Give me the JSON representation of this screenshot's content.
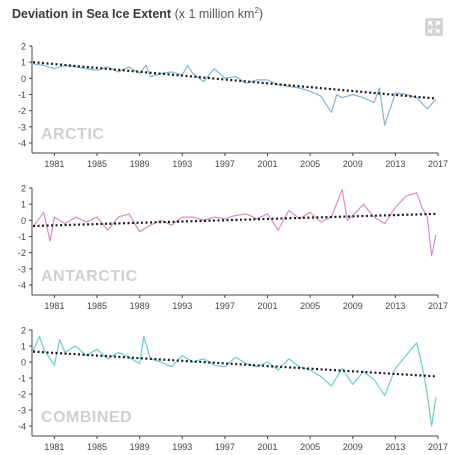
{
  "header": {
    "title": "Deviation in Sea Ice Extent",
    "unit_prefix": "(x 1 million km",
    "unit_sup": "2",
    "unit_suffix": ")",
    "expand_icon": "expand-arrows-icon"
  },
  "colors": {
    "arctic": "#7fb6d6",
    "antarctic": "#d68cca",
    "combined": "#6ccccf",
    "trend": "#1a1a1a",
    "panel_label": "#cfcfcf",
    "axis": "#444444"
  },
  "chart_data": [
    {
      "type": "line",
      "label": "ARCTIC",
      "color": "#7fb6d6",
      "xlim": [
        1978.9,
        2017.0
      ],
      "ylim": [
        -4,
        2
      ],
      "yticks": [
        2,
        1,
        0,
        -1,
        -2,
        -3,
        -4
      ],
      "xticks": [
        "1981",
        "1985",
        "1989",
        "1993",
        "1997",
        "2001",
        "2005",
        "2009",
        "2013",
        "2017"
      ],
      "trend": {
        "x": [
          1979,
          2016.8
        ],
        "y": [
          1.0,
          -1.25
        ]
      },
      "points": [
        [
          1979.0,
          0.9
        ],
        [
          1980.0,
          0.8
        ],
        [
          1981.0,
          0.6
        ],
        [
          1982.0,
          0.8
        ],
        [
          1983.0,
          0.7
        ],
        [
          1984.0,
          0.6
        ],
        [
          1985.0,
          0.5
        ],
        [
          1986.0,
          0.7
        ],
        [
          1987.0,
          0.4
        ],
        [
          1988.0,
          0.7
        ],
        [
          1989.0,
          0.3
        ],
        [
          1989.6,
          0.8
        ],
        [
          1990.0,
          0.1
        ],
        [
          1991.0,
          0.3
        ],
        [
          1992.0,
          0.4
        ],
        [
          1993.0,
          0.2
        ],
        [
          1993.5,
          0.8
        ],
        [
          1994.0,
          0.3
        ],
        [
          1995.0,
          -0.2
        ],
        [
          1996.0,
          0.6
        ],
        [
          1997.0,
          0.0
        ],
        [
          1998.0,
          0.1
        ],
        [
          1999.0,
          -0.3
        ],
        [
          2000.0,
          -0.1
        ],
        [
          2001.0,
          -0.1
        ],
        [
          2002.0,
          -0.4
        ],
        [
          2003.0,
          -0.5
        ],
        [
          2004.0,
          -0.6
        ],
        [
          2005.0,
          -0.8
        ],
        [
          2006.0,
          -1.1
        ],
        [
          2007.0,
          -2.1
        ],
        [
          2007.5,
          -1.0
        ],
        [
          2008.0,
          -1.2
        ],
        [
          2009.0,
          -1.0
        ],
        [
          2010.0,
          -1.2
        ],
        [
          2011.0,
          -1.5
        ],
        [
          2011.5,
          -0.6
        ],
        [
          2012.0,
          -2.9
        ],
        [
          2013.0,
          -0.9
        ],
        [
          2014.0,
          -1.0
        ],
        [
          2015.0,
          -1.2
        ],
        [
          2016.0,
          -1.9
        ],
        [
          2016.8,
          -1.3
        ]
      ]
    },
    {
      "type": "line",
      "label": "ANTARCTIC",
      "color": "#d68cca",
      "xlim": [
        1978.9,
        2017.0
      ],
      "ylim": [
        -4,
        2
      ],
      "yticks": [
        2,
        1,
        0,
        -1,
        -2,
        -3,
        -4
      ],
      "xticks": [
        "1981",
        "1985",
        "1989",
        "1993",
        "1997",
        "2001",
        "2005",
        "2009",
        "2013",
        "2017"
      ],
      "trend": {
        "x": [
          1979,
          2016.8
        ],
        "y": [
          -0.35,
          0.4
        ]
      },
      "points": [
        [
          1979.0,
          -0.4
        ],
        [
          1980.0,
          0.5
        ],
        [
          1980.6,
          -1.3
        ],
        [
          1981.0,
          0.2
        ],
        [
          1982.0,
          -0.2
        ],
        [
          1983.0,
          0.2
        ],
        [
          1984.0,
          -0.1
        ],
        [
          1985.0,
          0.2
        ],
        [
          1986.0,
          -0.6
        ],
        [
          1987.0,
          0.2
        ],
        [
          1988.0,
          0.4
        ],
        [
          1989.0,
          -0.7
        ],
        [
          1990.0,
          -0.3
        ],
        [
          1991.0,
          0.0
        ],
        [
          1992.0,
          -0.3
        ],
        [
          1993.0,
          0.2
        ],
        [
          1994.0,
          0.2
        ],
        [
          1995.0,
          0.0
        ],
        [
          1996.0,
          0.2
        ],
        [
          1997.0,
          0.1
        ],
        [
          1998.0,
          0.3
        ],
        [
          1999.0,
          0.4
        ],
        [
          2000.0,
          0.1
        ],
        [
          2001.0,
          0.4
        ],
        [
          2002.0,
          -0.6
        ],
        [
          2003.0,
          0.6
        ],
        [
          2004.0,
          0.1
        ],
        [
          2005.0,
          0.5
        ],
        [
          2006.0,
          -0.1
        ],
        [
          2007.0,
          0.2
        ],
        [
          2008.0,
          1.9
        ],
        [
          2008.5,
          0.0
        ],
        [
          2009.0,
          0.3
        ],
        [
          2010.0,
          1.0
        ],
        [
          2011.0,
          0.2
        ],
        [
          2012.0,
          -0.2
        ],
        [
          2013.0,
          0.8
        ],
        [
          2014.0,
          1.5
        ],
        [
          2015.0,
          1.7
        ],
        [
          2015.5,
          0.8
        ],
        [
          2016.0,
          0.2
        ],
        [
          2016.4,
          -2.2
        ],
        [
          2016.8,
          -0.9
        ]
      ]
    },
    {
      "type": "line",
      "label": "COMBINED",
      "color": "#6ccccf",
      "xlim": [
        1978.9,
        2017.0
      ],
      "ylim": [
        -4,
        2
      ],
      "yticks": [
        2,
        1,
        0,
        -1,
        -2,
        -3,
        -4
      ],
      "xticks": [
        "1981",
        "1985",
        "1989",
        "1993",
        "1997",
        "2001",
        "2005",
        "2009",
        "2013",
        "2017"
      ],
      "trend": {
        "x": [
          1979,
          2016.8
        ],
        "y": [
          0.65,
          -0.9
        ]
      },
      "points": [
        [
          1979.0,
          0.7
        ],
        [
          1979.6,
          1.6
        ],
        [
          1980.0,
          0.8
        ],
        [
          1981.0,
          -0.2
        ],
        [
          1981.5,
          1.4
        ],
        [
          1982.0,
          0.6
        ],
        [
          1983.0,
          1.0
        ],
        [
          1984.0,
          0.4
        ],
        [
          1985.0,
          0.8
        ],
        [
          1986.0,
          0.2
        ],
        [
          1987.0,
          0.6
        ],
        [
          1988.0,
          0.3
        ],
        [
          1989.0,
          -0.1
        ],
        [
          1989.4,
          1.6
        ],
        [
          1990.0,
          0.2
        ],
        [
          1991.0,
          0.0
        ],
        [
          1992.0,
          -0.3
        ],
        [
          1993.0,
          0.4
        ],
        [
          1994.0,
          0.0
        ],
        [
          1995.0,
          0.2
        ],
        [
          1996.0,
          -0.2
        ],
        [
          1997.0,
          -0.3
        ],
        [
          1998.0,
          0.3
        ],
        [
          1999.0,
          -0.1
        ],
        [
          2000.0,
          -0.3
        ],
        [
          2001.0,
          0.0
        ],
        [
          2002.0,
          -0.5
        ],
        [
          2003.0,
          0.2
        ],
        [
          2004.0,
          -0.3
        ],
        [
          2005.0,
          -0.5
        ],
        [
          2006.0,
          -0.9
        ],
        [
          2007.0,
          -1.5
        ],
        [
          2008.0,
          -0.4
        ],
        [
          2009.0,
          -1.4
        ],
        [
          2010.0,
          -0.6
        ],
        [
          2011.0,
          -1.1
        ],
        [
          2012.0,
          -2.1
        ],
        [
          2013.0,
          -0.4
        ],
        [
          2014.0,
          0.4
        ],
        [
          2015.0,
          1.2
        ],
        [
          2015.5,
          -0.2
        ],
        [
          2016.0,
          -2.0
        ],
        [
          2016.4,
          -4.0
        ],
        [
          2016.8,
          -2.2
        ]
      ]
    }
  ]
}
